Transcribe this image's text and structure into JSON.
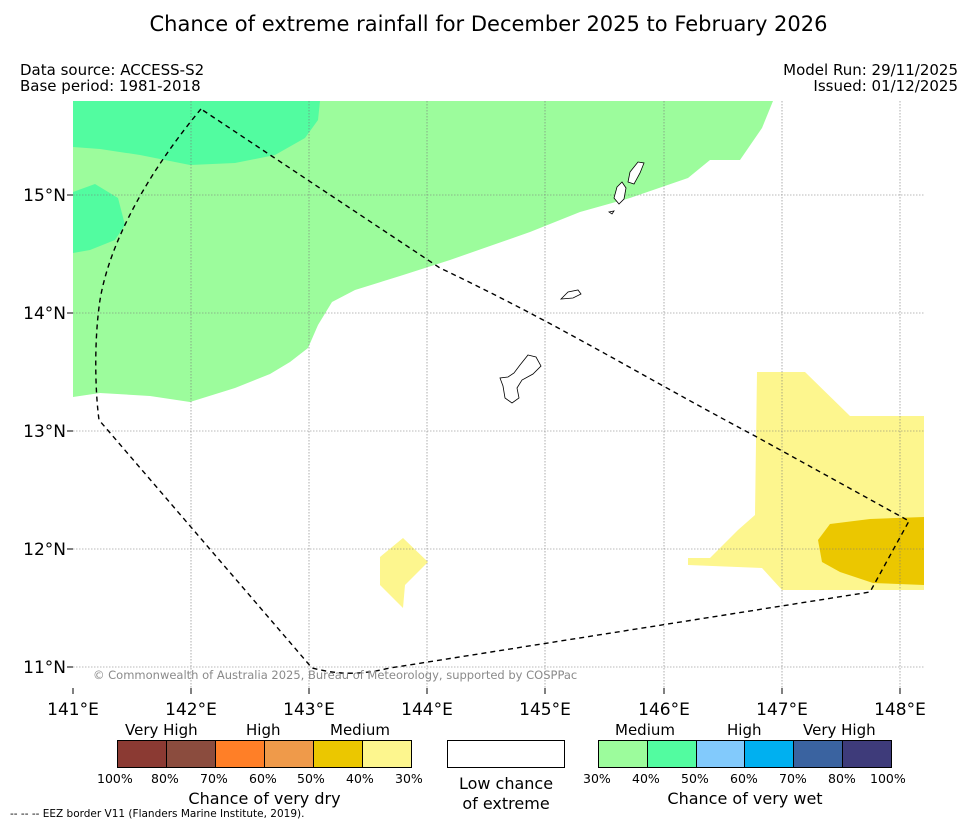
{
  "title": "Chance of extreme rainfall for December 2025 to February 2026",
  "meta": {
    "data_source": "Data source: ACCESS-S2",
    "base_period": "Base period: 1981-2018",
    "model_run": "Model Run: 29/11/2025",
    "issued": "Issued: 01/12/2025"
  },
  "map": {
    "lat_labels": [
      "15°N",
      "14°N",
      "13°N",
      "12°N",
      "11°N"
    ],
    "lon_labels": [
      "141°E",
      "142°E",
      "143°E",
      "144°E",
      "145°E",
      "146°E",
      "147°E",
      "148°E"
    ],
    "copyright": "© Commonwealth of Australia 2025, Bureau of Meteorology, supported by COSPPac",
    "colors": {
      "wet_medium": "#9cfc9c",
      "wet_high": "#52fca0",
      "dry_medium": "#fdf68e",
      "dry_medium_high": "#ebc700"
    }
  },
  "legend": {
    "dry": {
      "categories": [
        "Very High",
        "High",
        "Medium"
      ],
      "swatches": [
        "#8b3a33",
        "#8b4c3e",
        "#ff7f27",
        "#ef9a4a",
        "#ebc700",
        "#fdf68e"
      ],
      "ticks": [
        "100%",
        "80%",
        "70%",
        "60%",
        "50%",
        "40%",
        "30%"
      ],
      "caption": "Chance of very dry"
    },
    "low": {
      "line1": "Low chance",
      "line2": "of extreme"
    },
    "wet": {
      "categories": [
        "Medium",
        "High",
        "Very High"
      ],
      "swatches": [
        "#9cfc9c",
        "#52fca0",
        "#82cafc",
        "#00b0f0",
        "#3a63a0",
        "#3e3b7a"
      ],
      "ticks": [
        "30%",
        "40%",
        "50%",
        "60%",
        "70%",
        "80%",
        "100%"
      ],
      "caption": "Chance of very wet"
    }
  },
  "footnote": "--  --  -- EEZ border V11 (Flanders Marine Institute, 2019)."
}
